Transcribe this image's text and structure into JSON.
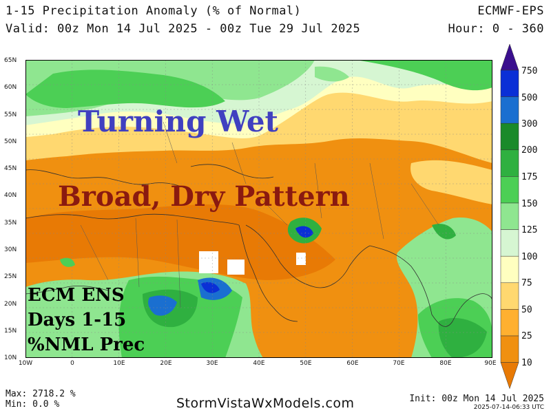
{
  "header": {
    "title": "1-15 Precipitation Anomaly (% of Normal)",
    "valid": "Valid: 00z Mon 14 Jul 2025 - 00z Tue 29 Jul 2025",
    "model": "ECMWF-EPS",
    "hour": "Hour: 0 - 360"
  },
  "map": {
    "lat_labels": [
      "65N",
      "60N",
      "55N",
      "50N",
      "45N",
      "40N",
      "35N",
      "30N",
      "25N",
      "20N",
      "15N",
      "10N"
    ],
    "lon_labels": [
      "10W",
      "0",
      "10E",
      "20E",
      "30E",
      "40E",
      "50E",
      "60E",
      "70E",
      "80E",
      "90E"
    ],
    "overlays": {
      "turning_wet": "Turning Wet",
      "broad_dry": "Broad, Dry Pattern"
    },
    "ens_box": [
      "ECM ENS",
      "Days 1-15",
      "%NML Prec"
    ]
  },
  "colorbar": {
    "labels": [
      "750",
      "500",
      "300",
      "200",
      "175",
      "150",
      "125",
      "100",
      "75",
      "50",
      "25",
      "10"
    ],
    "colors": [
      "#3a0f8e",
      "#0a2fd6",
      "#1a6fd0",
      "#1a8a2a",
      "#2fb040",
      "#4ccf55",
      "#8fe690",
      "#d6f6d2",
      "#ffffc0",
      "#ffd870",
      "#ffb030",
      "#f09010",
      "#e87a05"
    ]
  },
  "footer": {
    "max": "Max: 2718.2 %",
    "min": "Min: 0.0 %",
    "site": "StormVistaWxModels.com",
    "init": "Init: 00z Mon 14 Jul 2025",
    "stamp": "2025-07-14-06:33 UTC"
  }
}
